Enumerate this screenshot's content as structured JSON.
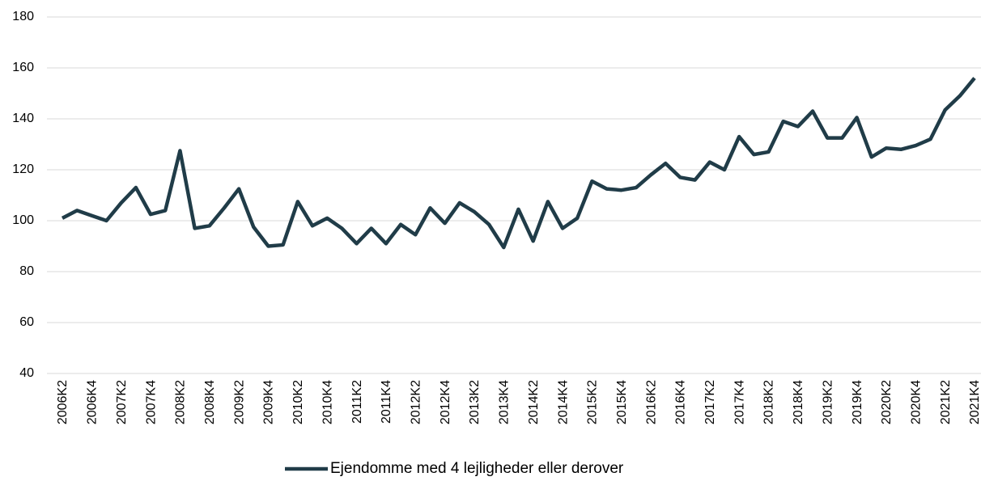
{
  "chart_data": {
    "type": "line",
    "categories": [
      "2006K2",
      null,
      "2006K4",
      null,
      "2007K2",
      null,
      "2007K4",
      null,
      "2008K2",
      null,
      "2008K4",
      null,
      "2009K2",
      null,
      "2009K4",
      null,
      "2010K2",
      null,
      "2010K4",
      null,
      "2011K2",
      null,
      "2011K4",
      null,
      "2012K2",
      null,
      "2012K4",
      null,
      "2013K2",
      null,
      "2013K4",
      null,
      "2014K2",
      null,
      "2014K4",
      null,
      "2015K2",
      null,
      "2015K4",
      null,
      "2016K2",
      null,
      "2016K4",
      null,
      "2017K2",
      null,
      "2017K4",
      null,
      "2018K2",
      null,
      "2018K4",
      null,
      "2019K2",
      null,
      "2019K4",
      null,
      "2020K2",
      null,
      "2020K4",
      null,
      "2021K2",
      null,
      "2021K4"
    ],
    "series": [
      {
        "name": "Ejendomme med 4 lejligheder eller derover",
        "color": "#203c48",
        "values": [
          101,
          104,
          102,
          100,
          107,
          113,
          102.5,
          104,
          127.5,
          97,
          98,
          105,
          112.5,
          97.5,
          90,
          90.5,
          107.5,
          98,
          101,
          97,
          91,
          97,
          91,
          98.5,
          94.5,
          105,
          99,
          107,
          103.5,
          98.5,
          89.5,
          104.5,
          92,
          107.5,
          97,
          101,
          115.5,
          112.5,
          112,
          113,
          118,
          122.5,
          117,
          116,
          123,
          120,
          133,
          126,
          127,
          139,
          137,
          143,
          132.5,
          132.5,
          140.5,
          125,
          128.5,
          128,
          129.5,
          132,
          143.5,
          149,
          156
        ]
      }
    ],
    "ylim": [
      40,
      180
    ],
    "yticks": [
      40,
      60,
      80,
      100,
      120,
      140,
      160,
      180
    ],
    "grid": true,
    "legend": "bottom"
  }
}
